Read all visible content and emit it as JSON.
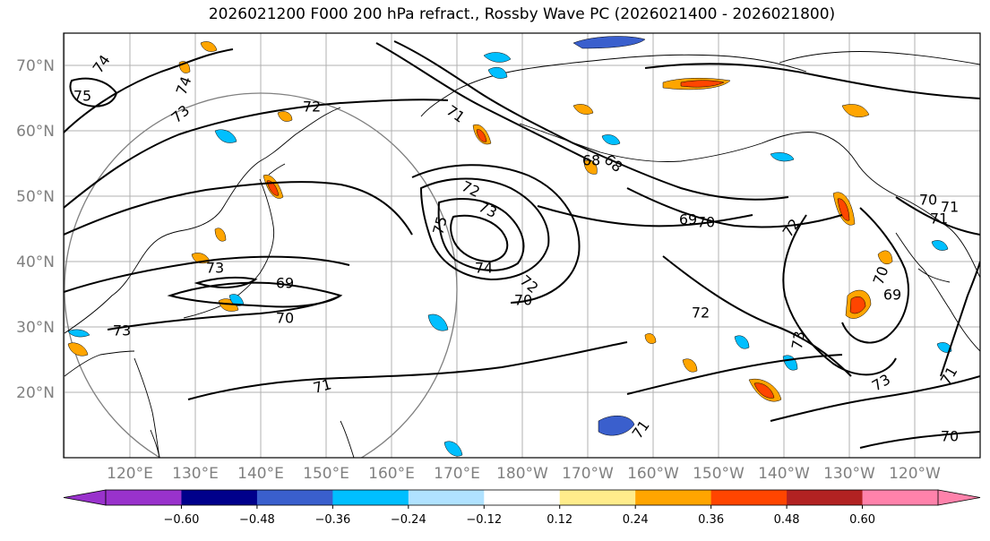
{
  "title": "2026021200 F000 200 hPa refract., Rossby Wave PC (2026021400 - 2026021800)",
  "lat_labels": [
    "70°N",
    "60°N",
    "50°N",
    "40°N",
    "30°N",
    "20°N"
  ],
  "lon_labels": [
    "120°E",
    "130°E",
    "140°E",
    "150°E",
    "160°E",
    "170°E",
    "180°W",
    "170°W",
    "160°W",
    "150°W",
    "140°W",
    "130°W",
    "120°W"
  ],
  "contour_labels": [
    "74",
    "75",
    "73",
    "74",
    "72",
    "71",
    "68",
    "69",
    "70",
    "73",
    "72",
    "71",
    "72",
    "75",
    "73",
    "74",
    "72",
    "70",
    "68",
    "69",
    "70",
    "71",
    "72",
    "73",
    "71",
    "70",
    "73",
    "70",
    "69",
    "73",
    "71",
    "70",
    "71"
  ],
  "colorbar": {
    "ticks": [
      "−0.60",
      "−0.48",
      "−0.36",
      "−0.24",
      "−0.12",
      "0.12",
      "0.24",
      "0.36",
      "0.48",
      "0.60"
    ],
    "colors": [
      "#9932CC",
      "#00008B",
      "#3A5FCD",
      "#00BFFF",
      "#B0E2FF",
      "#FFFFFF",
      "#FFEC8B",
      "#FFA500",
      "#FF4500",
      "#B22222",
      "#FF82AB"
    ]
  }
}
